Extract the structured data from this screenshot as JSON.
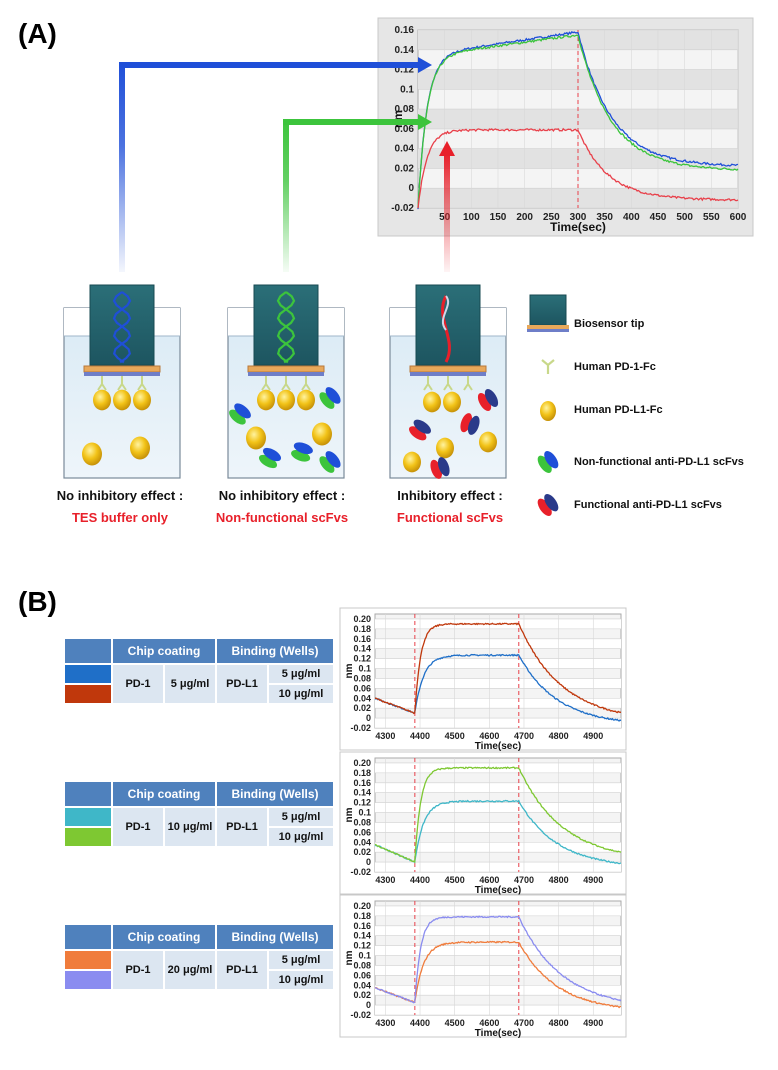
{
  "panel_labels": {
    "a": "(A)",
    "b": "(B)"
  },
  "panel_a": {
    "columns": [
      {
        "caption_line1": "No inhibitory effect :",
        "caption_line2": "TES buffer only"
      },
      {
        "caption_line1": "No inhibitory effect :",
        "caption_line2": "Non-functional scFvs"
      },
      {
        "caption_line1": "Inhibitory effect :",
        "caption_line2": "Functional scFvs"
      }
    ],
    "legend": [
      {
        "label": "Biosensor tip",
        "icon": "biosensor-tip-icon"
      },
      {
        "label": "Human PD-1-Fc",
        "icon": "pd1-fc-icon"
      },
      {
        "label": "Human PD-L1-Fc",
        "icon": "pdl1-fc-icon"
      },
      {
        "label": "Non-functional anti-PD-L1 scFvs",
        "icon": "nonfunctional-scfv-icon"
      },
      {
        "label": "Functional anti-PD-L1 scFvs",
        "icon": "functional-scfv-icon"
      }
    ],
    "colors": {
      "blue": "#1f4fd8",
      "green": "#3cc43c",
      "red": "#e8202a"
    }
  },
  "panel_b": {
    "tables": [
      {
        "chip_coating_header": "Chip coating",
        "binding_header": "Binding (Wells)",
        "chip": "PD-1",
        "chip_conc": "5 μg/ml",
        "binding": "PD-L1",
        "conc_low": "5 μg/ml",
        "conc_high": "10 μg/ml",
        "swatch_low": "#1f6fc8",
        "swatch_high": "#c0380c"
      },
      {
        "chip_coating_header": "Chip coating",
        "binding_header": "Binding (Wells)",
        "chip": "PD-1",
        "chip_conc": "10 μg/ml",
        "binding": "PD-L1",
        "conc_low": "5 μg/ml",
        "conc_high": "10 μg/ml",
        "swatch_low": "#3fb7c8",
        "swatch_high": "#7ec832"
      },
      {
        "chip_coating_header": "Chip coating",
        "binding_header": "Binding (Wells)",
        "chip": "PD-1",
        "chip_conc": "20 μg/ml",
        "binding": "PD-L1",
        "conc_low": "5 μg/ml",
        "conc_high": "10 μg/ml",
        "swatch_low": "#f07c3c",
        "swatch_high": "#8a8cf0"
      }
    ]
  },
  "chart_data": [
    {
      "type": "line",
      "title": "",
      "xlabel": "Time(sec)",
      "ylabel": "nm",
      "xlim": [
        0,
        600
      ],
      "ylim": [
        -0.02,
        0.16
      ],
      "x_ticks": [
        50,
        100,
        150,
        200,
        250,
        300,
        350,
        400,
        450,
        500,
        550,
        600
      ],
      "y_ticks": [
        -0.02,
        0,
        0.02,
        0.04,
        0.06,
        0.08,
        0.1,
        0.12,
        0.14,
        0.16
      ],
      "x_tick_labels": [
        "50",
        "100",
        "150",
        "200",
        "250",
        "300",
        "350",
        "400",
        "450",
        "500",
        "550",
        "600"
      ],
      "y_tick_labels": [
        "-0.02",
        "0",
        "0.02",
        "0.04",
        "0.06",
        "0.08",
        "0.1",
        "0.12",
        "0.14",
        "0.16"
      ],
      "marker_x": 300,
      "model": "kinetic",
      "assoc_start": 0,
      "dissoc_start": 300,
      "series": [
        {
          "name": "TES buffer only",
          "color": "#1f4fd8",
          "base": -0.02,
          "plateau": 0.158,
          "drift": 0.024,
          "k_on": 0.06,
          "k_off": 0.016,
          "resid": 0.022
        },
        {
          "name": "Non-functional scFvs",
          "color": "#3cc43c",
          "base": -0.02,
          "plateau": 0.155,
          "drift": 0.022,
          "k_on": 0.06,
          "k_off": 0.016,
          "resid": 0.018
        },
        {
          "name": "Functional scFvs",
          "color": "#e8404a",
          "base": -0.02,
          "plateau": 0.059,
          "drift": 0.0,
          "k_on": 0.06,
          "k_off": 0.018,
          "resid": -0.012
        }
      ]
    },
    {
      "type": "line",
      "xlabel": "Time(sec)",
      "ylabel": "nm",
      "xlim": [
        4270,
        4980
      ],
      "ylim": [
        -0.02,
        0.21
      ],
      "x_ticks": [
        4300,
        4400,
        4500,
        4600,
        4700,
        4800,
        4900
      ],
      "y_ticks": [
        -0.02,
        0,
        0.02,
        0.04,
        0.06,
        0.08,
        0.1,
        0.12,
        0.14,
        0.16,
        0.18,
        0.2
      ],
      "x_tick_labels": [
        "4300",
        "4400",
        "4500",
        "4600",
        "4700",
        "4800",
        "4900"
      ],
      "y_tick_labels": [
        "-0.02",
        "0",
        "0.02",
        "0.04",
        "0.06",
        "0.08",
        "0.1",
        "0.12",
        "0.14",
        "0.16",
        "0.18",
        "0.20"
      ],
      "marker_xs": [
        4385,
        4685
      ],
      "model": "biolayer",
      "base_start": 0.04,
      "base_end": 0.01,
      "assoc_start": 4385,
      "dissoc_start": 4685,
      "series": [
        {
          "name": "5 μg/ml",
          "color": "#1f6fc8",
          "plateau": 0.127,
          "k_on": 0.04,
          "k_off": 0.009,
          "resid": -0.015
        },
        {
          "name": "10 μg/ml",
          "color": "#c0380c",
          "plateau": 0.19,
          "k_on": 0.06,
          "k_off": 0.008,
          "resid": -0.008
        }
      ]
    },
    {
      "type": "line",
      "xlabel": "Time(sec)",
      "ylabel": "nm",
      "xlim": [
        4270,
        4980
      ],
      "ylim": [
        -0.02,
        0.21
      ],
      "x_ticks": [
        4300,
        4400,
        4500,
        4600,
        4700,
        4800,
        4900
      ],
      "y_ticks": [
        -0.02,
        0,
        0.02,
        0.04,
        0.06,
        0.08,
        0.1,
        0.12,
        0.14,
        0.16,
        0.18,
        0.2
      ],
      "x_tick_labels": [
        "4300",
        "4400",
        "4500",
        "4600",
        "4700",
        "4800",
        "4900"
      ],
      "y_tick_labels": [
        "-0.02",
        "0",
        "0.02",
        "0.04",
        "0.06",
        "0.08",
        "0.1",
        "0.12",
        "0.14",
        "0.16",
        "0.18",
        "0.20"
      ],
      "marker_xs": [
        4385,
        4685
      ],
      "model": "biolayer",
      "base_start": 0.035,
      "base_end": 0.0,
      "assoc_start": 4385,
      "dissoc_start": 4685,
      "series": [
        {
          "name": "5 μg/ml",
          "color": "#3fb7c8",
          "plateau": 0.123,
          "k_on": 0.04,
          "k_off": 0.009,
          "resid": -0.012
        },
        {
          "name": "10 μg/ml",
          "color": "#7ec832",
          "plateau": 0.19,
          "k_on": 0.06,
          "k_off": 0.008,
          "resid": 0.002
        }
      ]
    },
    {
      "type": "line",
      "xlabel": "Time(sec)",
      "ylabel": "nm",
      "xlim": [
        4270,
        4980
      ],
      "ylim": [
        -0.02,
        0.21
      ],
      "x_ticks": [
        4300,
        4400,
        4500,
        4600,
        4700,
        4800,
        4900
      ],
      "y_ticks": [
        -0.02,
        0,
        0.02,
        0.04,
        0.06,
        0.08,
        0.1,
        0.12,
        0.14,
        0.16,
        0.18,
        0.2
      ],
      "x_tick_labels": [
        "4300",
        "4400",
        "4500",
        "4600",
        "4700",
        "4800",
        "4900"
      ],
      "y_tick_labels": [
        "-0.02",
        "0",
        "0.02",
        "0.04",
        "0.06",
        "0.08",
        "0.1",
        "0.12",
        "0.14",
        "0.16",
        "0.18",
        "0.20"
      ],
      "marker_xs": [
        4385,
        4685
      ],
      "model": "biolayer",
      "base_start": 0.035,
      "base_end": 0.005,
      "assoc_start": 4385,
      "dissoc_start": 4685,
      "series": [
        {
          "name": "5 μg/ml",
          "color": "#f07c3c",
          "plateau": 0.127,
          "k_on": 0.04,
          "k_off": 0.009,
          "resid": -0.014
        },
        {
          "name": "10 μg/ml",
          "color": "#8a8cf0",
          "plateau": 0.178,
          "k_on": 0.06,
          "k_off": 0.008,
          "resid": -0.008
        }
      ]
    }
  ]
}
